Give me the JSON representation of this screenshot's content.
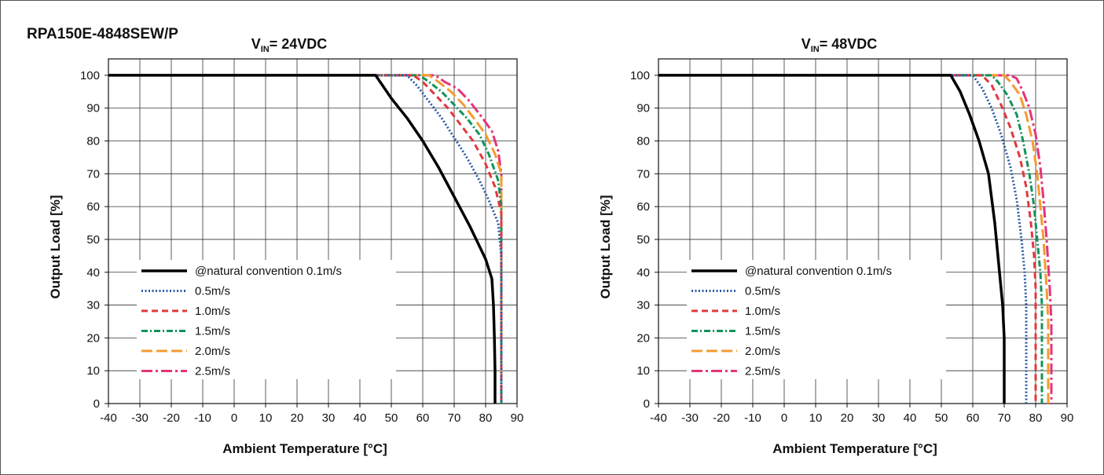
{
  "figure": {
    "model": "RPA150E-4848SEW/P"
  },
  "chart_data": [
    {
      "type": "line",
      "title": {
        "prefix": "V",
        "sub": "IN",
        "suffix": "= 24VDC"
      },
      "xlabel": "Ambient Temperature [°C]",
      "ylabel": "Output Load [%]",
      "xlim": [
        -40,
        90
      ],
      "ylim": [
        0,
        105
      ],
      "xticks": [
        -40,
        -30,
        -20,
        -10,
        0,
        10,
        20,
        30,
        40,
        50,
        60,
        70,
        80,
        90
      ],
      "yticks": [
        0,
        10,
        20,
        30,
        40,
        50,
        60,
        70,
        80,
        90,
        100
      ],
      "grid": true,
      "legend_position": "lower-left",
      "series": [
        {
          "name": "@natural convention 0.1m/s",
          "color": "#000000",
          "style": "solid",
          "points": [
            [
              -40,
              100
            ],
            [
              45,
              100
            ],
            [
              50,
              93
            ],
            [
              55,
              87
            ],
            [
              60,
              80
            ],
            [
              65,
              72
            ],
            [
              70,
              63
            ],
            [
              75,
              54
            ],
            [
              78,
              48
            ],
            [
              80,
              44
            ],
            [
              82,
              38
            ],
            [
              82.5,
              30
            ],
            [
              82.8,
              20
            ],
            [
              83,
              10
            ],
            [
              83,
              0
            ]
          ]
        },
        {
          "name": "0.5m/s",
          "color": "#2b5aa6",
          "style": "dot",
          "points": [
            [
              -40,
              100
            ],
            [
              55,
              100
            ],
            [
              58,
              97
            ],
            [
              62,
              92
            ],
            [
              66,
              87
            ],
            [
              70,
              81
            ],
            [
              74,
              75
            ],
            [
              78,
              68
            ],
            [
              81,
              62
            ],
            [
              84,
              55
            ],
            [
              85,
              45
            ],
            [
              85,
              0
            ]
          ]
        },
        {
          "name": "1.0m/s",
          "color": "#e0393e",
          "style": "dash",
          "points": [
            [
              -40,
              100
            ],
            [
              57,
              100
            ],
            [
              60,
              98
            ],
            [
              64,
              94
            ],
            [
              68,
              90
            ],
            [
              72,
              85
            ],
            [
              76,
              80
            ],
            [
              80,
              73
            ],
            [
              83,
              66
            ],
            [
              85,
              58
            ],
            [
              85,
              0
            ]
          ]
        },
        {
          "name": "1.5m/s",
          "color": "#11935a",
          "style": "dashdot",
          "points": [
            [
              -40,
              100
            ],
            [
              59,
              100
            ],
            [
              62,
              98
            ],
            [
              66,
              95
            ],
            [
              70,
              91
            ],
            [
              74,
              87
            ],
            [
              78,
              82
            ],
            [
              81,
              76
            ],
            [
              84,
              68
            ],
            [
              85,
              60
            ],
            [
              85,
              0
            ]
          ]
        },
        {
          "name": "2.0m/s",
          "color": "#f59b30",
          "style": "longdash",
          "points": [
            [
              -40,
              100
            ],
            [
              62,
              100
            ],
            [
              65,
              98
            ],
            [
              69,
              95
            ],
            [
              73,
              91
            ],
            [
              77,
              86
            ],
            [
              80,
              82
            ],
            [
              83,
              76
            ],
            [
              85,
              70
            ],
            [
              85,
              0
            ]
          ]
        },
        {
          "name": "2.5m/s",
          "color": "#e5337a",
          "style": "longdashdot",
          "points": [
            [
              -40,
              100
            ],
            [
              64,
              100
            ],
            [
              67,
              98
            ],
            [
              71,
              96
            ],
            [
              75,
              92
            ],
            [
              79,
              87
            ],
            [
              82,
              83
            ],
            [
              84,
              77
            ],
            [
              85,
              70
            ],
            [
              85,
              0
            ]
          ]
        }
      ]
    },
    {
      "type": "line",
      "title": {
        "prefix": "V",
        "sub": "IN",
        "suffix": "= 48VDC"
      },
      "xlabel": "Ambient Temperature [°C]",
      "ylabel": "Output Load [%]",
      "xlim": [
        -40,
        90
      ],
      "ylim": [
        0,
        105
      ],
      "xticks": [
        -40,
        -30,
        -20,
        -10,
        0,
        10,
        20,
        30,
        40,
        50,
        60,
        70,
        80,
        90
      ],
      "yticks": [
        0,
        10,
        20,
        30,
        40,
        50,
        60,
        70,
        80,
        90,
        100
      ],
      "grid": true,
      "legend_position": "lower-left",
      "series": [
        {
          "name": "@natural convention 0.1m/s",
          "color": "#000000",
          "style": "solid",
          "points": [
            [
              -40,
              100
            ],
            [
              53,
              100
            ],
            [
              56,
              95
            ],
            [
              59,
              88
            ],
            [
              62,
              80
            ],
            [
              65,
              70
            ],
            [
              67,
              55
            ],
            [
              68.5,
              40
            ],
            [
              69.5,
              30
            ],
            [
              70,
              20
            ],
            [
              70,
              0
            ]
          ]
        },
        {
          "name": "0.5m/s",
          "color": "#2b5aa6",
          "style": "dot",
          "points": [
            [
              -40,
              100
            ],
            [
              60,
              100
            ],
            [
              63,
              96
            ],
            [
              66,
              90
            ],
            [
              69,
              82
            ],
            [
              72,
              72
            ],
            [
              74,
              62
            ],
            [
              75.5,
              50
            ],
            [
              76.5,
              40
            ],
            [
              77,
              30
            ],
            [
              77,
              0
            ]
          ]
        },
        {
          "name": "1.0m/s",
          "color": "#e0393e",
          "style": "dash",
          "points": [
            [
              -40,
              100
            ],
            [
              63,
              100
            ],
            [
              66,
              97
            ],
            [
              69,
              91
            ],
            [
              72,
              84
            ],
            [
              75,
              75
            ],
            [
              77,
              66
            ],
            [
              78.5,
              55
            ],
            [
              79.5,
              45
            ],
            [
              80,
              35
            ],
            [
              80,
              0
            ]
          ]
        },
        {
          "name": "1.5m/s",
          "color": "#11935a",
          "style": "dashdot",
          "points": [
            [
              -40,
              100
            ],
            [
              66,
              100
            ],
            [
              68,
              98
            ],
            [
              71,
              94
            ],
            [
              74,
              88
            ],
            [
              76,
              80
            ],
            [
              78,
              70
            ],
            [
              79.5,
              60
            ],
            [
              80.5,
              50
            ],
            [
              81.5,
              40
            ],
            [
              82,
              30
            ],
            [
              82,
              0
            ]
          ]
        },
        {
          "name": "2.0m/s",
          "color": "#f59b30",
          "style": "longdash",
          "points": [
            [
              -40,
              100
            ],
            [
              70,
              100
            ],
            [
              72,
              98
            ],
            [
              75,
              94
            ],
            [
              77,
              88
            ],
            [
              79,
              80
            ],
            [
              80.5,
              70
            ],
            [
              81.5,
              60
            ],
            [
              82.5,
              50
            ],
            [
              83.5,
              35
            ],
            [
              84,
              25
            ],
            [
              84,
              0
            ]
          ]
        },
        {
          "name": "2.5m/s",
          "color": "#e5337a",
          "style": "longdashdot",
          "points": [
            [
              -40,
              100
            ],
            [
              72,
              100
            ],
            [
              74,
              99
            ],
            [
              76,
              95
            ],
            [
              78,
              90
            ],
            [
              80,
              82
            ],
            [
              81.5,
              72
            ],
            [
              82.5,
              62
            ],
            [
              83.5,
              50
            ],
            [
              84.5,
              35
            ],
            [
              85,
              25
            ],
            [
              85,
              0
            ]
          ]
        }
      ]
    }
  ]
}
